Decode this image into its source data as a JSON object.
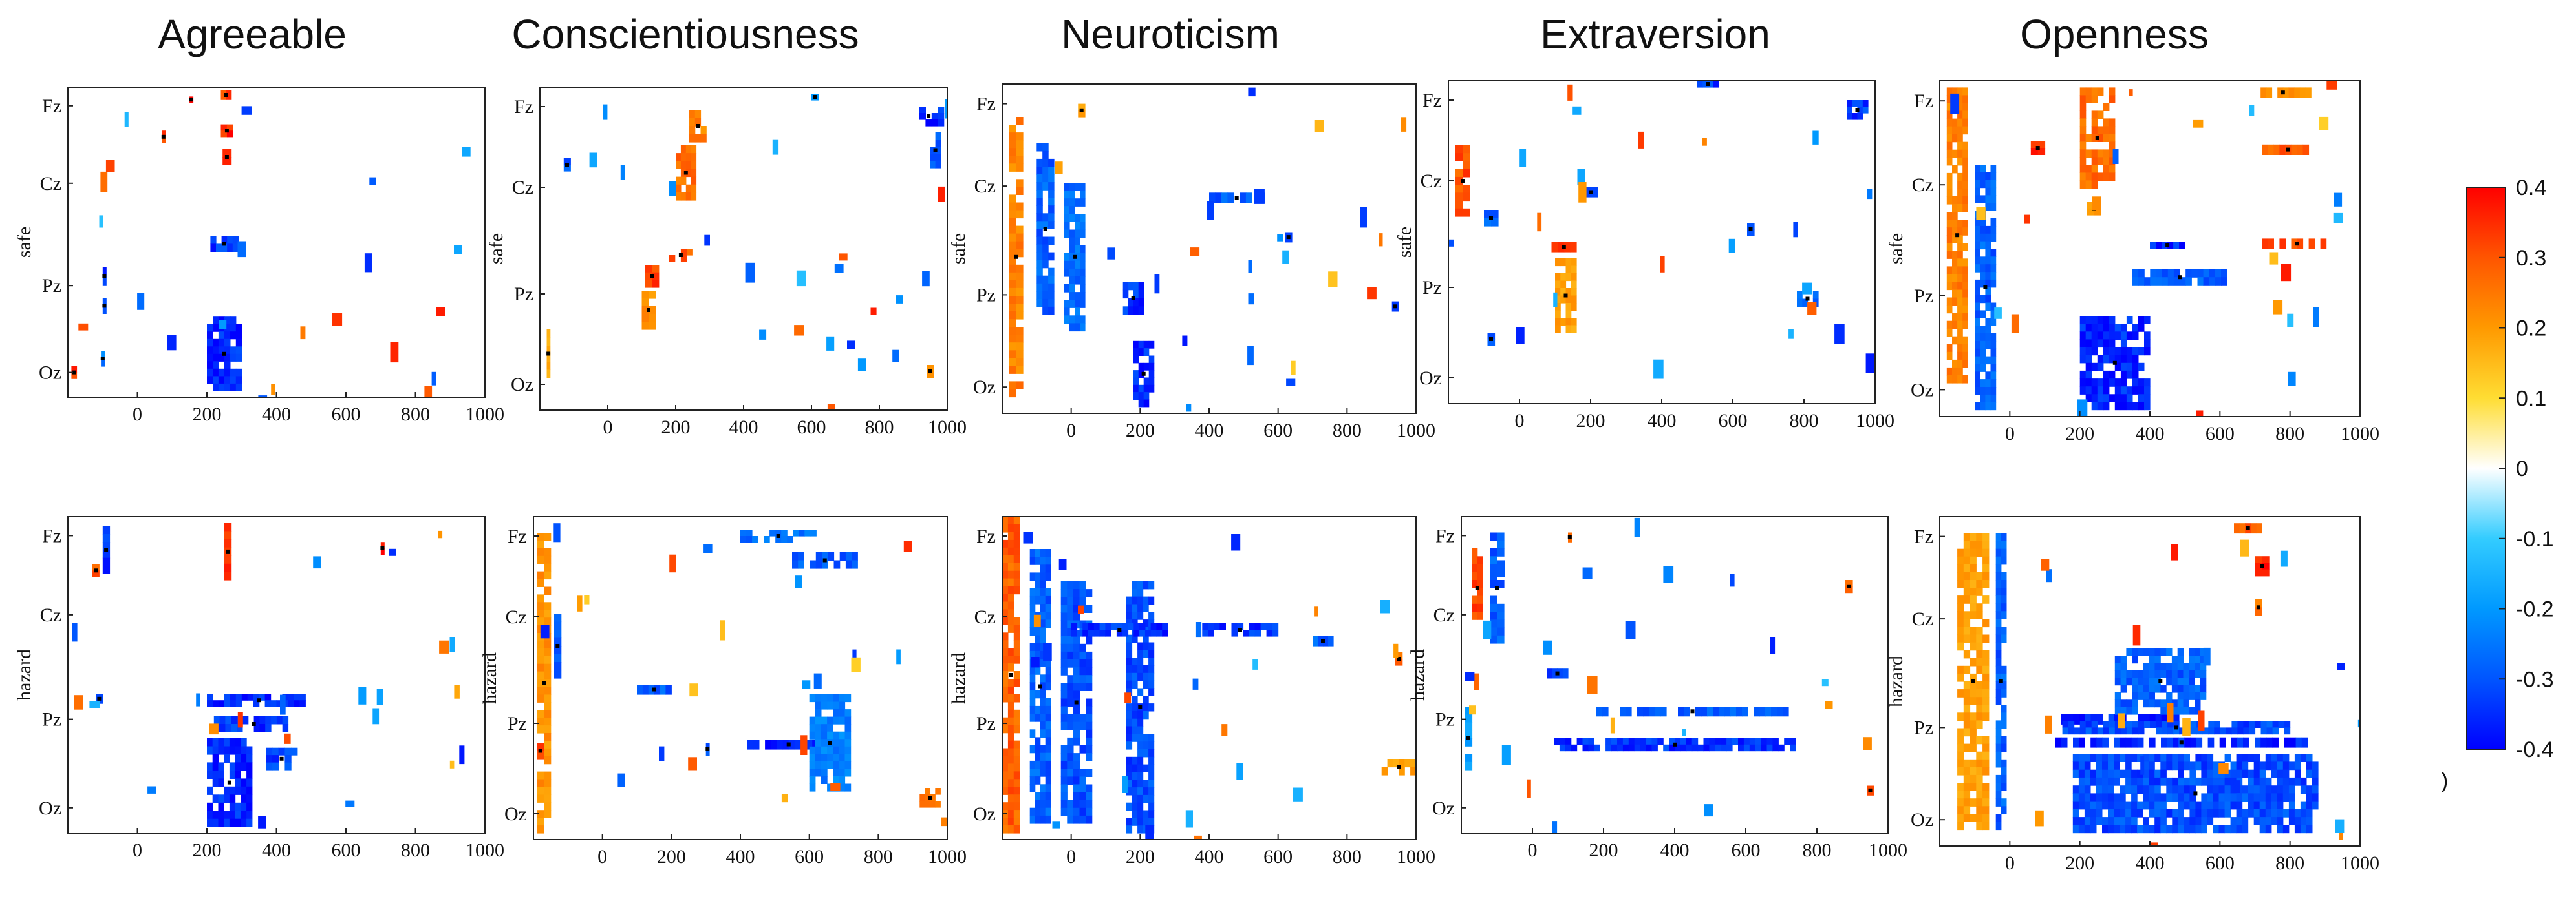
{
  "chart_data": {
    "type": "heatmap",
    "column_titles": [
      "Agreeable",
      "Conscientiousness",
      "Neuroticism",
      "Extraversion",
      "Openness"
    ],
    "row_labels": [
      "safe",
      "hazard"
    ],
    "x_ticks": [
      0,
      200,
      400,
      600,
      800,
      1000
    ],
    "x_range": [
      -200,
      1000
    ],
    "channels": [
      "Fz",
      "Cz",
      "Pz",
      "Oz"
    ],
    "colorbar": {
      "range": [
        -0.4,
        0.4
      ],
      "ticks": [
        "0.4",
        "0.3",
        "0.2",
        "0.1",
        "0",
        "-0.1",
        "-0.2",
        "-0.3",
        "-0.4"
      ],
      "colors": [
        "#0000ff",
        "#0055ff",
        "#0099ff",
        "#33ccff",
        "#ffffff",
        "#ffdd33",
        "#ff9900",
        "#ff5500",
        "#ff0000"
      ]
    },
    "stray_text": ")",
    "panels": [
      [
        {
          "x": [
            200,
            300
          ],
          "ch": [
            0.74,
            0.98
          ],
          "v": -0.38
        },
        {
          "x": [
            210,
            290
          ],
          "ch": [
            0.48,
            0.53
          ],
          "v": -0.36
        },
        {
          "x": [
            240,
            270
          ],
          "ch": [
            0.01,
            0.04
          ],
          "v": 0.35
        },
        {
          "x": [
            240,
            275
          ],
          "ch": [
            0.12,
            0.16
          ],
          "v": 0.38
        },
        {
          "x": [
            245,
            270
          ],
          "ch": [
            0.2,
            0.25
          ],
          "v": 0.33
        },
        {
          "x": [
            70,
            80
          ],
          "ch": [
            0.14,
            0.18
          ],
          "v": 0.34
        },
        {
          "x": [
            -190,
            -175
          ],
          "ch": [
            0.9,
            0.94
          ],
          "v": 0.35
        },
        {
          "x": [
            -100,
            -90
          ],
          "ch": [
            0.58,
            0.64
          ],
          "v": -0.35
        },
        {
          "x": [
            -100,
            -90
          ],
          "ch": [
            0.68,
            0.73
          ],
          "v": -0.3
        },
        {
          "x": [
            -105,
            -95
          ],
          "ch": [
            0.85,
            0.9
          ],
          "v": -0.25
        },
        {
          "x": [
            150,
            160
          ],
          "ch": [
            0.03,
            0.05
          ],
          "v": 0.4
        }
      ],
      [
        {
          "x": [
            240,
            290
          ],
          "ch": [
            0.07,
            0.17
          ],
          "v": 0.25
        },
        {
          "x": [
            200,
            260
          ],
          "ch": [
            0.18,
            0.35
          ],
          "v": 0.28
        },
        {
          "x": [
            180,
            250
          ],
          "ch": [
            0.5,
            0.54
          ],
          "v": 0.3
        },
        {
          "x": [
            110,
            150
          ],
          "ch": [
            0.55,
            0.62
          ],
          "v": 0.35
        },
        {
          "x": [
            100,
            140
          ],
          "ch": [
            0.63,
            0.75
          ],
          "v": 0.22
        },
        {
          "x": [
            900,
            990
          ],
          "ch": [
            0.06,
            0.12
          ],
          "v": -0.38
        },
        {
          "x": [
            950,
            980
          ],
          "ch": [
            0.14,
            0.25
          ],
          "v": -0.3
        },
        {
          "x": [
            -130,
            -110
          ],
          "ch": [
            0.22,
            0.26
          ],
          "v": -0.3
        },
        {
          "x": [
            -180,
            -170
          ],
          "ch": [
            0.75,
            0.9
          ],
          "v": 0.18
        },
        {
          "x": [
            600,
            620
          ],
          "ch": [
            0.02,
            0.04
          ],
          "v": -0.25
        },
        {
          "x": [
            940,
            960
          ],
          "ch": [
            0.86,
            0.9
          ],
          "v": 0.2
        }
      ],
      [
        {
          "x": [
            180,
            240
          ],
          "ch": [
            0.78,
            0.98
          ],
          "v": -0.38
        },
        {
          "x": [
            400,
            560
          ],
          "ch": [
            0.33,
            0.36
          ],
          "v": -0.3
        },
        {
          "x": [
            -180,
            -140
          ],
          "ch": [
            0.1,
            0.95
          ],
          "v": 0.25
        },
        {
          "x": [
            -100,
            -50
          ],
          "ch": [
            0.18,
            0.7
          ],
          "v": -0.3
        },
        {
          "x": [
            -20,
            40
          ],
          "ch": [
            0.3,
            0.75
          ],
          "v": -0.28
        },
        {
          "x": [
            150,
            210
          ],
          "ch": [
            0.6,
            0.7
          ],
          "v": -0.36
        },
        {
          "x": [
            620,
            640
          ],
          "ch": [
            0.45,
            0.48
          ],
          "v": -0.3
        },
        {
          "x": [
            930,
            950
          ],
          "ch": [
            0.66,
            0.69
          ],
          "v": -0.35
        },
        {
          "x": [
            20,
            40
          ],
          "ch": [
            0.06,
            0.1
          ],
          "v": 0.2
        }
      ],
      [
        {
          "x": [
            90,
            160
          ],
          "ch": [
            0.5,
            0.53
          ],
          "v": 0.33
        },
        {
          "x": [
            100,
            160
          ],
          "ch": [
            0.55,
            0.78
          ],
          "v": 0.2
        },
        {
          "x": [
            -180,
            -140
          ],
          "ch": [
            0.2,
            0.42
          ],
          "v": 0.32
        },
        {
          "x": [
            -100,
            -60
          ],
          "ch": [
            0.4,
            0.45
          ],
          "v": -0.3
        },
        {
          "x": [
            180,
            220
          ],
          "ch": [
            0.33,
            0.36
          ],
          "v": -0.3
        },
        {
          "x": [
            500,
            560
          ],
          "ch": [
            0.0,
            0.02
          ],
          "v": -0.35
        },
        {
          "x": [
            920,
            980
          ],
          "ch": [
            0.06,
            0.12
          ],
          "v": -0.35
        },
        {
          "x": [
            640,
            660
          ],
          "ch": [
            0.44,
            0.48
          ],
          "v": -0.3
        },
        {
          "x": [
            780,
            840
          ],
          "ch": [
            0.65,
            0.7
          ],
          "v": -0.3
        },
        {
          "x": [
            -90,
            -70
          ],
          "ch": [
            0.78,
            0.82
          ],
          "v": -0.32
        }
      ],
      [
        {
          "x": [
            200,
            400
          ],
          "ch": [
            0.7,
            0.98
          ],
          "v": -0.38
        },
        {
          "x": [
            350,
            620
          ],
          "ch": [
            0.56,
            0.61
          ],
          "v": -0.3
        },
        {
          "x": [
            400,
            500
          ],
          "ch": [
            0.48,
            0.5
          ],
          "v": -0.38
        },
        {
          "x": [
            720,
            920
          ],
          "ch": [
            0.47,
            0.5
          ],
          "v": 0.33
        },
        {
          "x": [
            720,
            870
          ],
          "ch": [
            0.19,
            0.22
          ],
          "v": 0.3
        },
        {
          "x": [
            700,
            860
          ],
          "ch": [
            0.02,
            0.05
          ],
          "v": 0.22
        },
        {
          "x": [
            200,
            300
          ],
          "ch": [
            0.02,
            0.32
          ],
          "v": 0.28
        },
        {
          "x": [
            -180,
            -120
          ],
          "ch": [
            0.02,
            0.9
          ],
          "v": 0.25
        },
        {
          "x": [
            -100,
            -40
          ],
          "ch": [
            0.25,
            0.98
          ],
          "v": -0.3
        },
        {
          "x": [
            60,
            100
          ],
          "ch": [
            0.18,
            0.22
          ],
          "v": 0.38
        },
        {
          "x": [
            220,
            260
          ],
          "ch": [
            0.36,
            0.4
          ],
          "v": 0.2
        }
      ],
      [
        {
          "x": [
            -100,
            -80
          ],
          "ch": [
            0.03,
            0.18
          ],
          "v": -0.38
        },
        {
          "x": [
            250,
            270
          ],
          "ch": [
            0.02,
            0.2
          ],
          "v": 0.35
        },
        {
          "x": [
            700,
            710
          ],
          "ch": [
            0.08,
            0.12
          ],
          "v": 0.38
        },
        {
          "x": [
            200,
            500
          ],
          "ch": [
            0.56,
            0.6
          ],
          "v": -0.38
        },
        {
          "x": [
            220,
            450
          ],
          "ch": [
            0.63,
            0.68
          ],
          "v": -0.36
        },
        {
          "x": [
            200,
            330
          ],
          "ch": [
            0.7,
            0.98
          ],
          "v": -0.38
        },
        {
          "x": [
            370,
            460
          ],
          "ch": [
            0.73,
            0.8
          ],
          "v": -0.35
        },
        {
          "x": [
            -130,
            -110
          ],
          "ch": [
            0.15,
            0.19
          ],
          "v": 0.32
        },
        {
          "x": [
            -120,
            -100
          ],
          "ch": [
            0.56,
            0.59
          ],
          "v": -0.3
        }
      ],
      [
        {
          "x": [
            400,
            620
          ],
          "ch": [
            0.04,
            0.08
          ],
          "v": -0.28
        },
        {
          "x": [
            550,
            740
          ],
          "ch": [
            0.11,
            0.16
          ],
          "v": -0.3
        },
        {
          "x": [
            420,
            660
          ],
          "ch": [
            0.69,
            0.72
          ],
          "v": -0.38
        },
        {
          "x": [
            600,
            720
          ],
          "ch": [
            0.55,
            0.85
          ],
          "v": -0.25
        },
        {
          "x": [
            -190,
            -150
          ],
          "ch": [
            0.05,
            0.98
          ],
          "v": 0.22
        },
        {
          "x": [
            -140,
            -120
          ],
          "ch": [
            0.3,
            0.5
          ],
          "v": -0.3
        },
        {
          "x": [
            100,
            200
          ],
          "ch": [
            0.52,
            0.55
          ],
          "v": -0.3
        },
        {
          "x": [
            920,
            980
          ],
          "ch": [
            0.84,
            0.9
          ],
          "v": 0.3
        },
        {
          "x": [
            -190,
            -170
          ],
          "ch": [
            0.7,
            0.75
          ],
          "v": 0.35
        },
        {
          "x": [
            300,
            310
          ],
          "ch": [
            0.7,
            0.74
          ],
          "v": -0.3
        }
      ],
      [
        {
          "x": [
            -200,
            -150
          ],
          "ch": [
            0.0,
            0.98
          ],
          "v": 0.3
        },
        {
          "x": [
            -120,
            -60
          ],
          "ch": [
            0.1,
            0.95
          ],
          "v": -0.3
        },
        {
          "x": [
            -30,
            60
          ],
          "ch": [
            0.2,
            0.95
          ],
          "v": -0.32
        },
        {
          "x": [
            160,
            240
          ],
          "ch": [
            0.2,
            0.98
          ],
          "v": -0.33
        },
        {
          "x": [
            0,
            280
          ],
          "ch": [
            0.33,
            0.37
          ],
          "v": -0.36
        },
        {
          "x": [
            380,
            600
          ],
          "ch": [
            0.33,
            0.37
          ],
          "v": -0.36
        },
        {
          "x": [
            700,
            760
          ],
          "ch": [
            0.37,
            0.4
          ],
          "v": -0.3
        },
        {
          "x": [
            900,
            1000
          ],
          "ch": [
            0.75,
            0.8
          ],
          "v": 0.2
        },
        {
          "x": [
            940,
            960
          ],
          "ch": [
            0.42,
            0.46
          ],
          "v": 0.3
        }
      ],
      [
        {
          "x": [
            60,
            740
          ],
          "ch": [
            0.7,
            0.74
          ],
          "v": -0.36
        },
        {
          "x": [
            180,
            720
          ],
          "ch": [
            0.6,
            0.63
          ],
          "v": -0.3
        },
        {
          "x": [
            40,
            100
          ],
          "ch": [
            0.48,
            0.51
          ],
          "v": -0.35
        },
        {
          "x": [
            -170,
            -140
          ],
          "ch": [
            0.1,
            0.35
          ],
          "v": 0.33
        },
        {
          "x": [
            -120,
            -80
          ],
          "ch": [
            0.05,
            0.4
          ],
          "v": -0.3
        },
        {
          "x": [
            100,
            110
          ],
          "ch": [
            0.05,
            0.08
          ],
          "v": 0.3
        },
        {
          "x": [
            880,
            900
          ],
          "ch": [
            0.2,
            0.24
          ],
          "v": 0.3
        },
        {
          "x": [
            940,
            960
          ],
          "ch": [
            0.85,
            0.88
          ],
          "v": 0.3
        },
        {
          "x": [
            -190,
            -170
          ],
          "ch": [
            0.6,
            0.8
          ],
          "v": -0.2
        }
      ],
      [
        {
          "x": [
            130,
            500
          ],
          "ch": [
            0.6,
            0.63
          ],
          "v": -0.38
        },
        {
          "x": [
            130,
            850
          ],
          "ch": [
            0.67,
            0.7
          ],
          "v": -0.38
        },
        {
          "x": [
            150,
            800
          ],
          "ch": [
            0.62,
            0.66
          ],
          "v": -0.33
        },
        {
          "x": [
            180,
            880
          ],
          "ch": [
            0.72,
            0.96
          ],
          "v": -0.33
        },
        {
          "x": [
            300,
            560
          ],
          "ch": [
            0.4,
            0.6
          ],
          "v": -0.3
        },
        {
          "x": [
            -150,
            -60
          ],
          "ch": [
            0.05,
            0.95
          ],
          "v": 0.2
        },
        {
          "x": [
            -40,
            -10
          ],
          "ch": [
            0.05,
            0.95
          ],
          "v": -0.3
        },
        {
          "x": [
            640,
            720
          ],
          "ch": [
            0.02,
            0.05
          ],
          "v": 0.3
        },
        {
          "x": [
            700,
            740
          ],
          "ch": [
            0.12,
            0.18
          ],
          "v": 0.38
        },
        {
          "x": [
            700,
            720
          ],
          "ch": [
            0.25,
            0.3
          ],
          "v": 0.25
        }
      ]
    ]
  }
}
